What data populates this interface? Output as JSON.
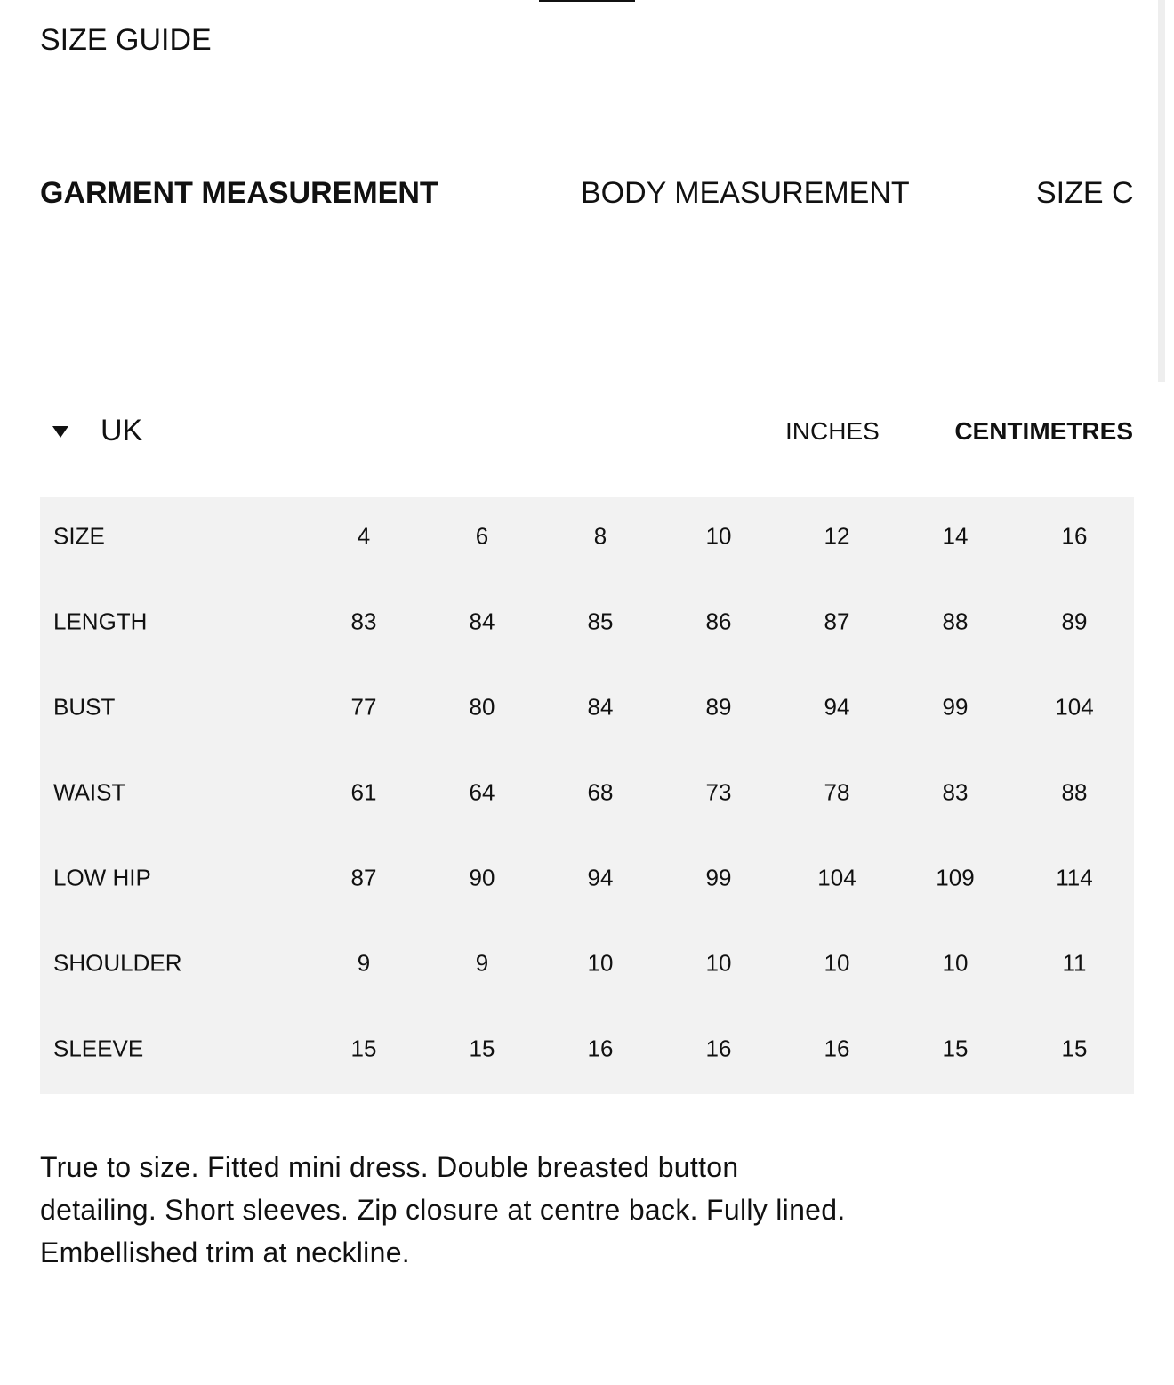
{
  "header": {
    "title": "SIZE GUIDE"
  },
  "tabs": [
    "GARMENT MEASUREMENT",
    "BODY MEASUREMENT",
    "SIZE C"
  ],
  "region": "UK",
  "units": [
    "INCHES",
    "CENTIMETRES"
  ],
  "table": {
    "rows": [
      [
        "SIZE",
        4,
        6,
        8,
        10,
        12,
        14,
        16
      ],
      [
        "LENGTH",
        83,
        84,
        85,
        86,
        87,
        88,
        89
      ],
      [
        "BUST",
        77,
        80,
        84,
        89,
        94,
        99,
        104
      ],
      [
        "WAIST",
        61,
        64,
        68,
        73,
        78,
        83,
        88
      ],
      [
        "LOW HIP",
        87,
        90,
        94,
        99,
        104,
        109,
        114
      ],
      [
        "SHOULDER",
        9,
        9,
        10,
        10,
        10,
        10,
        11
      ],
      [
        "SLEEVE",
        15,
        15,
        16,
        16,
        16,
        15,
        15
      ]
    ]
  },
  "description": [
    "True to size. Fitted mini dress. Double breasted button",
    "detailing. Short sleeves. Zip closure at centre back. Fully lined.",
    "Embellished trim at neckline."
  ]
}
